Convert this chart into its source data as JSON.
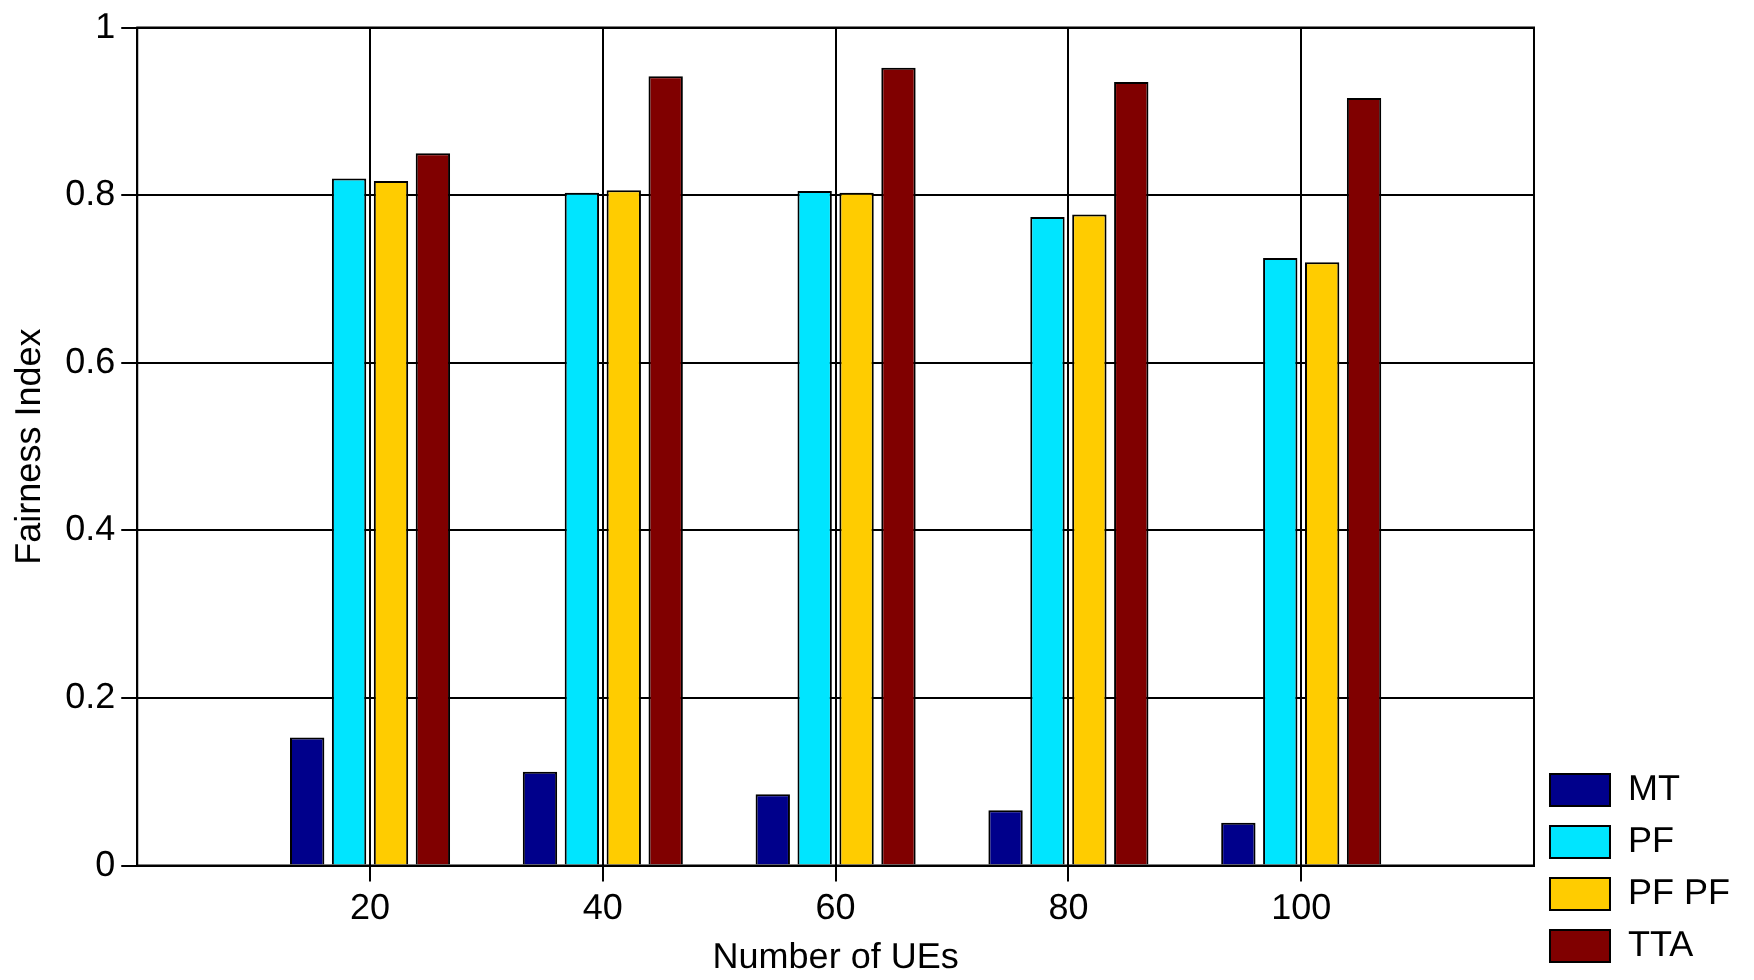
{
  "chart_data": {
    "type": "bar",
    "xlabel": "Number of UEs",
    "ylabel": "Fairness Index",
    "x": [
      20,
      40,
      60,
      80,
      100
    ],
    "xlim": [
      0,
      120
    ],
    "xticks": [
      20,
      40,
      60,
      80,
      100
    ],
    "ylim": [
      0,
      1
    ],
    "yticks": [
      0,
      0.2,
      0.4,
      0.6,
      0.8,
      1
    ],
    "grid": true,
    "legend": "bottom right",
    "series": [
      {
        "name": "MT",
        "color": "#00008b",
        "values": [
          0.153,
          0.112,
          0.085,
          0.066,
          0.051
        ]
      },
      {
        "name": "PF",
        "color": "#00e5ff",
        "values": [
          0.82,
          0.803,
          0.805,
          0.774,
          0.725
        ]
      },
      {
        "name": "PF PF",
        "color": "#ffcc00",
        "values": [
          0.817,
          0.806,
          0.803,
          0.777,
          0.72
        ]
      },
      {
        "name": "TTA",
        "color": "#800000",
        "values": [
          0.85,
          0.942,
          0.952,
          0.935,
          0.916
        ]
      }
    ]
  }
}
